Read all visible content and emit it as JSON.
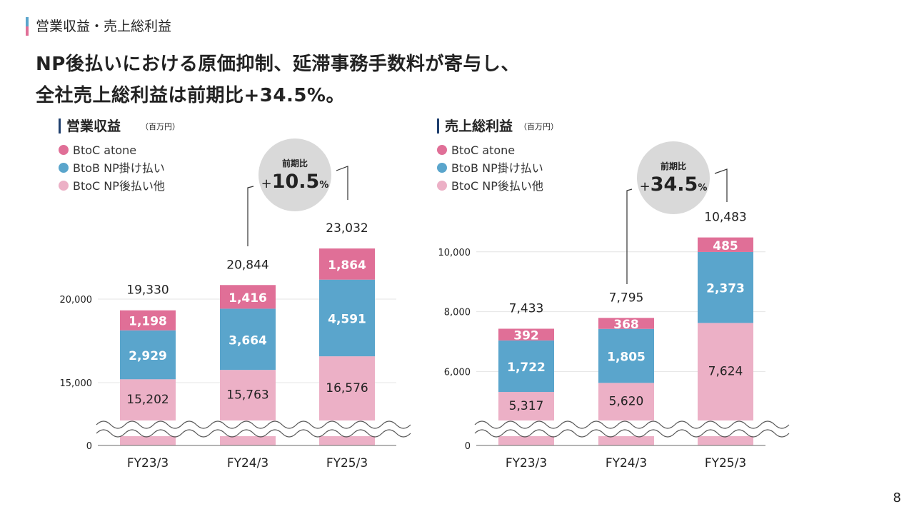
{
  "section_title": "営業収益・売上総利益",
  "headline": [
    "NP後払いにおける原価抑制、延滞事務手数料が寄与し、",
    "全社売上総利益は前期比+34.5%。"
  ],
  "page_number": "8",
  "colors": {
    "atone": "#e06f97",
    "btob": "#5aa5cc",
    "np": "#ecb0c6",
    "accent_bar": "#1f3f6e",
    "circle": "#d9d9d9"
  },
  "chart_data": [
    {
      "type": "bar",
      "stacked": true,
      "title": "営業収益",
      "unit": "（百万円）",
      "categories": [
        "FY23/3",
        "FY24/3",
        "FY25/3"
      ],
      "series": [
        {
          "name": "BtoC NP後払い他",
          "values": [
            15202,
            15763,
            16576
          ]
        },
        {
          "name": "BtoB NP掛け払い",
          "values": [
            2929,
            3664,
            4591
          ]
        },
        {
          "name": "BtoC atone",
          "values": [
            1198,
            1416,
            1864
          ]
        }
      ],
      "segment_labels": [
        [
          "15,202",
          "2,929",
          "1,198"
        ],
        [
          "15,763",
          "3,664",
          "1,416"
        ],
        [
          "16,576",
          "4,591",
          "1,864"
        ]
      ],
      "totals": [
        19330,
        20844,
        23032
      ],
      "total_labels": [
        "19,330",
        "20,844",
        "23,032"
      ],
      "yticks": [
        20000,
        15000,
        0
      ],
      "ytick_labels": [
        "20,000",
        "15,000",
        "0"
      ],
      "axis_break": true,
      "growth": {
        "label": "前期比",
        "sign": "+",
        "value": "10.5",
        "unit": "%"
      },
      "legend": [
        "BtoC atone",
        "BtoB NP掛け払い",
        "BtoC NP後払い他"
      ]
    },
    {
      "type": "bar",
      "stacked": true,
      "title": "売上総利益",
      "unit": "（百万円）",
      "categories": [
        "FY23/3",
        "FY24/3",
        "FY25/3"
      ],
      "series": [
        {
          "name": "BtoC NP後払い他",
          "values": [
            5317,
            5620,
            7624
          ]
        },
        {
          "name": "BtoB NP掛け払い",
          "values": [
            1722,
            1805,
            2373
          ]
        },
        {
          "name": "BtoC atone",
          "values": [
            392,
            368,
            485
          ]
        }
      ],
      "segment_labels": [
        [
          "5,317",
          "1,722",
          "392"
        ],
        [
          "5,620",
          "1,805",
          "368"
        ],
        [
          "7,624",
          "2,373",
          "485"
        ]
      ],
      "totals": [
        7433,
        7795,
        10483
      ],
      "total_labels": [
        "7,433",
        "7,795",
        "10,483"
      ],
      "yticks": [
        10000,
        8000,
        6000,
        0
      ],
      "ytick_labels": [
        "10,000",
        "8,000",
        "6,000",
        "0"
      ],
      "axis_break": true,
      "growth": {
        "label": "前期比",
        "sign": "+",
        "value": "34.5",
        "unit": "%"
      },
      "legend": [
        "BtoC atone",
        "BtoB NP掛け払い",
        "BtoC NP後払い他"
      ]
    }
  ]
}
